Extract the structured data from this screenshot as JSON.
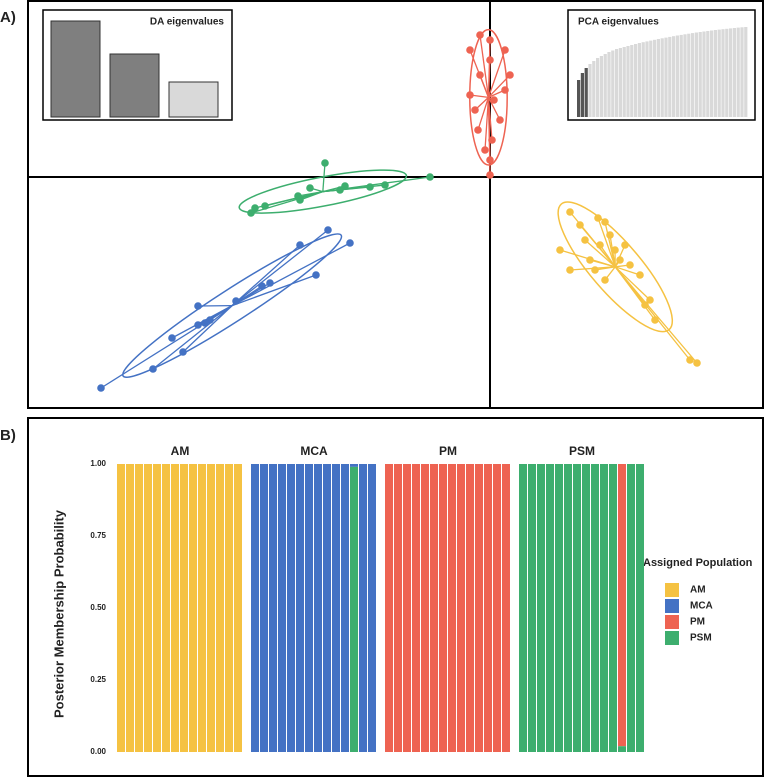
{
  "chart_data": [
    {
      "type": "scatter",
      "label": "A)",
      "xlim": [
        -9.24,
        5.46
      ],
      "ylim": [
        -4.62,
        3.54
      ],
      "series": [
        {
          "color": "#F5C242",
          "x": [
            1.6,
            2.16,
            1.8,
            2.3,
            2.4,
            1.9,
            1.4,
            2.2,
            2.5,
            2.6,
            2.8,
            2.1,
            2.3,
            3.0,
            3.2,
            3.1,
            3.3,
            4.0,
            4.14,
            1.6,
            2.0,
            2.7
          ],
          "values": [
            -0.7,
            -0.82,
            -0.96,
            -0.9,
            -1.16,
            -1.26,
            -1.46,
            -1.36,
            -1.46,
            -1.66,
            -1.76,
            -1.86,
            -2.06,
            -1.96,
            -2.46,
            -2.56,
            -2.86,
            -3.66,
            -3.72,
            -1.86,
            -1.66,
            -1.36
          ]
        },
        {
          "color": "#4472C4",
          "x": [
            -7.78,
            -6.74,
            -6.14,
            -6.36,
            -5.84,
            -5.7,
            -5.84,
            -5.08,
            -4.56,
            -3.8,
            -3.48,
            -2.8,
            -3.24,
            -4.4,
            -5.6
          ],
          "values": [
            -4.22,
            -3.84,
            -3.5,
            -3.22,
            -2.96,
            -2.92,
            -2.58,
            -2.48,
            -2.18,
            -1.36,
            -1.96,
            -1.32,
            -1.06,
            -2.12,
            -2.86
          ]
        },
        {
          "color": "#EE6352",
          "x": [
            0,
            0,
            -0.1,
            0.08,
            -0.4,
            0.3,
            -0.2,
            0,
            0.3,
            -0.4,
            0,
            -0.2,
            0.2,
            -0.24,
            0.04,
            0.4,
            -0.3
          ],
          "values": [
            0.04,
            0.34,
            0.54,
            1.54,
            1.64,
            1.74,
            2.04,
            2.34,
            2.54,
            2.54,
            2.74,
            2.84,
            1.14,
            0.94,
            0.74,
            2.04,
            1.34
          ]
        },
        {
          "color": "#3DAE6E",
          "x": [
            -4.78,
            -4.5,
            -3.8,
            -3.3,
            -3.6,
            -2.9,
            -2.4,
            -2.1,
            -1.2,
            -4.7,
            -3.0,
            -3.84
          ],
          "values": [
            -0.72,
            -0.58,
            -0.46,
            0.28,
            -0.22,
            -0.18,
            -0.2,
            -0.16,
            0,
            -0.62,
            -0.26,
            -0.38
          ]
        }
      ],
      "insets": [
        {
          "title": "DA eigenvalues",
          "ylim": [
            0,
            100
          ],
          "values": [
            96,
            63,
            35
          ],
          "colors": [
            "#7f7f7f",
            "#7f7f7f",
            "#d9d9d9"
          ]
        },
        {
          "title": "PCA eigenvalues",
          "ylim": [
            0,
            100
          ],
          "color": "#d9d9d9",
          "highlight_color": "#555555",
          "highlighted": 3,
          "values": [
            37,
            44,
            49,
            53,
            56,
            59,
            61,
            63,
            65,
            66.5,
            68,
            69,
            70,
            71,
            72,
            73,
            74,
            74.8,
            75.6,
            76.4,
            77.2,
            78,
            78.7,
            79.4,
            80.1,
            80.8,
            81.5,
            82.1,
            82.7,
            83.3,
            83.9,
            84.5,
            85,
            85.5,
            86,
            86.5,
            87,
            87.4,
            87.8,
            88.2,
            88.6,
            89,
            89.4,
            89.7,
            90
          ]
        }
      ]
    },
    {
      "type": "stacked_bar",
      "label": "B)",
      "ylabel": "Posterior Membership Probability",
      "ylim": [
        0,
        1
      ],
      "yticks": [
        {
          "value": 0,
          "label": "0.00"
        },
        {
          "value": 0.25,
          "label": "0.25"
        },
        {
          "value": 0.5,
          "label": "0.50"
        },
        {
          "value": 0.75,
          "label": "0.75"
        },
        {
          "value": 1,
          "label": "1.00"
        }
      ],
      "legend_title": "Assigned Population",
      "series": [
        {
          "name": "AM",
          "color": "#F5C242"
        },
        {
          "name": "MCA",
          "color": "#4472C4"
        },
        {
          "name": "PM",
          "color": "#EE6352"
        },
        {
          "name": "PSM",
          "color": "#3DAE6E"
        }
      ],
      "facets": [
        {
          "title": "AM",
          "values": [
            [
              1,
              1,
              1,
              1,
              1,
              1,
              1,
              1,
              1,
              1,
              1,
              1,
              1,
              1
            ],
            [
              0,
              0,
              0,
              0,
              0,
              0,
              0,
              0,
              0,
              0,
              0,
              0,
              0,
              0
            ],
            [
              0,
              0,
              0,
              0,
              0,
              0,
              0,
              0,
              0,
              0,
              0,
              0,
              0,
              0
            ],
            [
              0,
              0,
              0,
              0,
              0,
              0,
              0,
              0,
              0,
              0,
              0,
              0,
              0,
              0
            ]
          ]
        },
        {
          "title": "MCA",
          "values": [
            [
              0,
              0,
              0,
              0,
              0,
              0,
              0,
              0,
              0,
              0,
              0,
              0,
              0,
              0
            ],
            [
              1,
              1,
              1,
              1,
              1,
              1,
              1,
              1,
              1,
              1,
              1,
              0.01,
              1,
              1
            ],
            [
              0,
              0,
              0,
              0,
              0,
              0,
              0,
              0,
              0,
              0,
              0,
              0,
              0,
              0
            ],
            [
              0,
              0,
              0,
              0,
              0,
              0,
              0,
              0,
              0,
              0,
              0,
              0.99,
              0,
              0
            ]
          ]
        },
        {
          "title": "PM",
          "values": [
            [
              0,
              0,
              0,
              0,
              0,
              0,
              0,
              0,
              0,
              0,
              0,
              0,
              0,
              0
            ],
            [
              0,
              0,
              0,
              0,
              0,
              0,
              0,
              0,
              0,
              0,
              0,
              0,
              0,
              0
            ],
            [
              1,
              1,
              1,
              1,
              1,
              1,
              1,
              1,
              1,
              1,
              1,
              1,
              1,
              1
            ],
            [
              0,
              0,
              0,
              0,
              0,
              0,
              0,
              0,
              0,
              0,
              0,
              0,
              0,
              0
            ]
          ]
        },
        {
          "title": "PSM",
          "values": [
            [
              0,
              0,
              0,
              0,
              0,
              0,
              0,
              0,
              0,
              0,
              0,
              0,
              0,
              0
            ],
            [
              0,
              0,
              0,
              0,
              0,
              0,
              0,
              0,
              0,
              0,
              0,
              0,
              0,
              0
            ],
            [
              0,
              0,
              0,
              0,
              0,
              0,
              0,
              0,
              0,
              0,
              0,
              0.98,
              0,
              0
            ],
            [
              1,
              1,
              1,
              1,
              1,
              1,
              1,
              1,
              1,
              1,
              1,
              0.02,
              1,
              1
            ]
          ]
        }
      ]
    }
  ]
}
